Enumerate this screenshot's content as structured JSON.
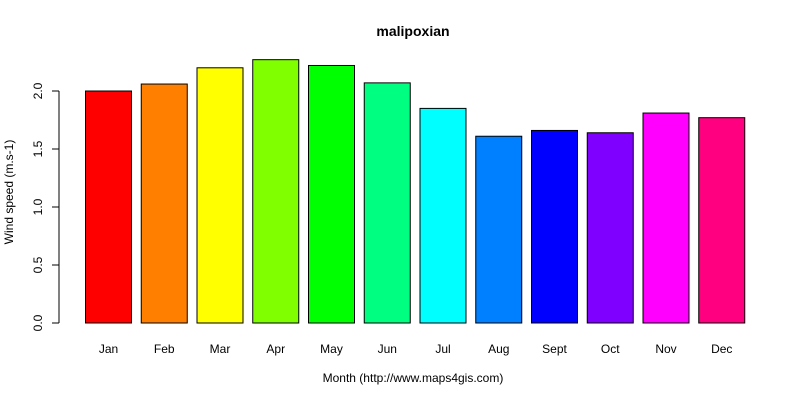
{
  "chart_data": {
    "type": "bar",
    "title": "malipoxian",
    "xlabel": "Month (http://www.maps4gis.com)",
    "ylabel": "Wind speed (m.s-1)",
    "categories": [
      "Jan",
      "Feb",
      "Mar",
      "Apr",
      "May",
      "Jun",
      "Jul",
      "Aug",
      "Sept",
      "Oct",
      "Nov",
      "Dec"
    ],
    "values": [
      2.0,
      2.06,
      2.2,
      2.27,
      2.22,
      2.07,
      1.85,
      1.61,
      1.66,
      1.64,
      1.81,
      1.77
    ],
    "colors": [
      "#FF0000",
      "#FF8000",
      "#FFFF00",
      "#80FF00",
      "#00FF00",
      "#00FF80",
      "#00FFFF",
      "#0080FF",
      "#0000FF",
      "#8000FF",
      "#FF00FF",
      "#FF0080"
    ],
    "yticks": [
      0.0,
      0.5,
      1.0,
      1.5,
      2.0
    ],
    "ytick_labels": [
      "0.0",
      "0.5",
      "1.0",
      "1.5",
      "2.0"
    ],
    "ylim": [
      0,
      2.35
    ],
    "grid": false,
    "legend": "none"
  }
}
